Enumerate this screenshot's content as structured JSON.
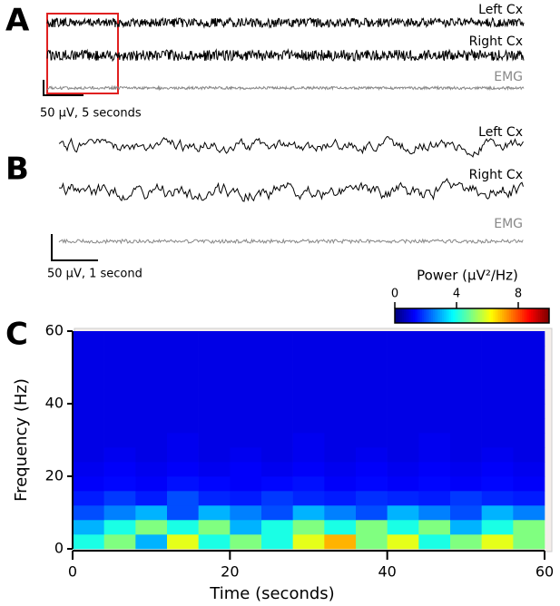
{
  "panels": {
    "a": {
      "label": "A",
      "traces": [
        "Left Cx",
        "Right Cx",
        "EMG"
      ],
      "scale": "50 µV, 5 seconds"
    },
    "b": {
      "label": "B",
      "traces": [
        "Left Cx",
        "Right Cx",
        "EMG"
      ],
      "scale": "50 µV, 1 second"
    },
    "c": {
      "label": "C"
    }
  },
  "chart_data": {
    "type": "heatmap",
    "xlabel": "Time (seconds)",
    "ylabel": "Frequency (Hz)",
    "xbins": [
      0,
      4,
      8,
      12,
      16,
      20,
      24,
      28,
      32,
      36,
      40,
      44,
      48,
      52,
      56,
      60
    ],
    "ybins": [
      0,
      4,
      8,
      12,
      16,
      20,
      24,
      28,
      32,
      36,
      40,
      44,
      48,
      52,
      56,
      60
    ],
    "values": [
      [
        4,
        5,
        3,
        6,
        4,
        5,
        4,
        6,
        7,
        5,
        6,
        4,
        5,
        6,
        5
      ],
      [
        3,
        4,
        5,
        4,
        5,
        3,
        4,
        5,
        4,
        5,
        4,
        5,
        3,
        4,
        5
      ],
      [
        2,
        2.5,
        3,
        2,
        3,
        2.5,
        2,
        3,
        2.5,
        2,
        3,
        2.5,
        2,
        3,
        2.5
      ],
      [
        1.5,
        1.8,
        1.5,
        2,
        1.6,
        1.5,
        1.8,
        1.6,
        1.5,
        1.7,
        1.6,
        1.5,
        1.8,
        1.6,
        1.5
      ],
      [
        1.2,
        1.3,
        1.2,
        1.4,
        1.3,
        1.2,
        1.3,
        1.4,
        1.2,
        1.3,
        1.2,
        1.3,
        1.2,
        1.3,
        1.2
      ],
      [
        1.1,
        1.2,
        1.1,
        1.2,
        1.1,
        1.2,
        1.1,
        1.2,
        1.1,
        1.2,
        1.1,
        1.2,
        1.1,
        1.2,
        1.1
      ],
      [
        1,
        1.1,
        1,
        1.1,
        1,
        1.1,
        1,
        1.1,
        1,
        1.1,
        1,
        1.1,
        1,
        1.1,
        1
      ],
      [
        1,
        1,
        1,
        1.1,
        1,
        1,
        1,
        1.1,
        1,
        1,
        1,
        1.1,
        1,
        1,
        1
      ],
      [
        1,
        1,
        1,
        1,
        1,
        1,
        1,
        1,
        1,
        1,
        1,
        1,
        1,
        1,
        1
      ],
      [
        1,
        1,
        1,
        1,
        1,
        1,
        1,
        1,
        1,
        1,
        1,
        1,
        1,
        1,
        1
      ],
      [
        1,
        1,
        1,
        1,
        1,
        1,
        1,
        1,
        1,
        1,
        1,
        1,
        1,
        1,
        1
      ],
      [
        1,
        1,
        1,
        1,
        1,
        1,
        1,
        1,
        1,
        1,
        1,
        1,
        1,
        1,
        1
      ],
      [
        1,
        1,
        1,
        1,
        1,
        1,
        1,
        1,
        1,
        1,
        1,
        1,
        1,
        1,
        1
      ],
      [
        1,
        1,
        1,
        1,
        1,
        1,
        1,
        1,
        1,
        1,
        1,
        1,
        1,
        1,
        1
      ],
      [
        1,
        1,
        1,
        1,
        1,
        1,
        1,
        1,
        1,
        1,
        1,
        1,
        1,
        1,
        1
      ]
    ],
    "xlim": [
      0,
      60
    ],
    "xticks": [
      0,
      20,
      40,
      60
    ],
    "ylim": [
      0,
      60
    ],
    "yticks": [
      0,
      20,
      40,
      60
    ],
    "colorbar": {
      "title": "Power (µV²/Hz)",
      "lim": [
        0,
        10
      ],
      "ticks": [
        0,
        4,
        8
      ],
      "colormap": "jet"
    }
  }
}
